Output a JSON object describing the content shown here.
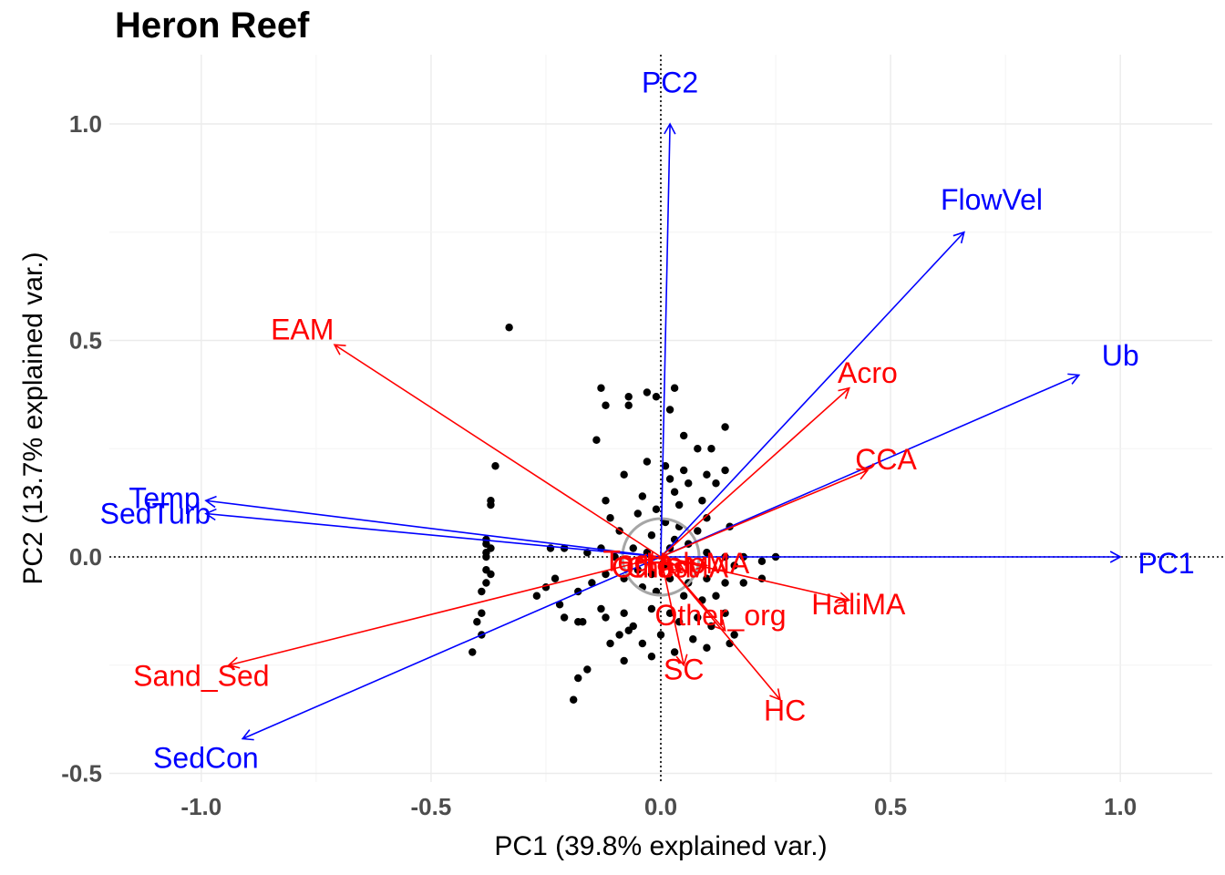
{
  "title": "Heron Reef",
  "chart_data": {
    "type": "scatter",
    "subtype": "biplot",
    "title": "Heron Reef",
    "xlabel": "PC1 (39.8% explained var.)",
    "ylabel": "PC2 (13.7% explained var.)",
    "xlim": [
      -1.2,
      1.2
    ],
    "ylim": [
      -0.52,
      1.16
    ],
    "xticks": [
      -1.0,
      -0.5,
      0.0,
      0.5,
      1.0
    ],
    "xtick_labels": [
      "-1.0",
      "-0.5",
      "0.0",
      "0.5",
      "1.0"
    ],
    "yticks": [
      -0.5,
      0.0,
      0.5,
      1.0
    ],
    "ytick_labels": [
      "-0.5",
      "0.0",
      "0.5",
      "1.0"
    ],
    "grid": true,
    "colors": {
      "blue_vectors": "#0000ff",
      "red_vectors": "#ff0000",
      "points": "#000000",
      "circle": "#a6a6a6"
    },
    "blue_vectors": [
      {
        "name": "PC2",
        "x": 0.02,
        "y": 1.0,
        "lx": 0.02,
        "ly": 1.09
      },
      {
        "name": "FlowVel",
        "x": 0.66,
        "y": 0.75,
        "lx": 0.72,
        "ly": 0.82
      },
      {
        "name": "Ub",
        "x": 0.91,
        "y": 0.42,
        "lx": 1.0,
        "ly": 0.46
      },
      {
        "name": "PC1",
        "x": 1.0,
        "y": 0.0,
        "lx": 1.1,
        "ly": -0.02
      },
      {
        "name": "Temp",
        "x": -0.99,
        "y": 0.13,
        "lx": -1.08,
        "ly": 0.13
      },
      {
        "name": "SedTurb",
        "x": -0.99,
        "y": 0.1,
        "lx": -1.1,
        "ly": 0.095
      },
      {
        "name": "SedCon",
        "x": -0.91,
        "y": -0.42,
        "lx": -0.99,
        "ly": -0.47
      }
    ],
    "red_vectors": [
      {
        "name": "EAM",
        "x": -0.71,
        "y": 0.49,
        "lx": -0.78,
        "ly": 0.52
      },
      {
        "name": "Acro",
        "x": 0.41,
        "y": 0.39,
        "lx": 0.45,
        "ly": 0.42
      },
      {
        "name": "CCA",
        "x": 0.45,
        "y": 0.2,
        "lx": 0.49,
        "ly": 0.22
      },
      {
        "name": "HaliMA",
        "x": 0.41,
        "y": -0.1,
        "lx": 0.43,
        "ly": -0.115
      },
      {
        "name": "Sand_Sed",
        "x": -0.94,
        "y": -0.25,
        "lx": -1.0,
        "ly": -0.28
      },
      {
        "name": "HC",
        "x": 0.26,
        "y": -0.33,
        "lx": 0.27,
        "ly": -0.36
      },
      {
        "name": "SC",
        "x": 0.05,
        "y": -0.25,
        "lx": 0.05,
        "ly": -0.265
      },
      {
        "name": "Other_org",
        "x": 0.14,
        "y": -0.17,
        "lx": 0.13,
        "ly": -0.14
      },
      {
        "name": "HaloMA",
        "x": 0.1,
        "y": -0.02,
        "lx": 0.08,
        "ly": -0.02
      },
      {
        "name": "OtherMA",
        "x": 0.05,
        "y": -0.03,
        "lx": 0.02,
        "ly": -0.03
      },
      {
        "name": "Tecta",
        "x": -0.05,
        "y": -0.01,
        "lx": -0.05,
        "ly": -0.015
      },
      {
        "name": "Crust",
        "x": 0.02,
        "y": -0.02,
        "lx": 0.0,
        "ly": -0.03
      }
    ],
    "points": [
      [
        -0.33,
        0.53
      ],
      [
        -0.13,
        0.39
      ],
      [
        -0.07,
        0.37
      ],
      [
        -0.03,
        0.38
      ],
      [
        -0.01,
        0.37
      ],
      [
        0.03,
        0.39
      ],
      [
        0.02,
        0.34
      ],
      [
        -0.07,
        0.35
      ],
      [
        -0.12,
        0.35
      ],
      [
        0.14,
        0.3
      ],
      [
        -0.14,
        0.27
      ],
      [
        0.05,
        0.28
      ],
      [
        -0.03,
        0.22
      ],
      [
        0.08,
        0.25
      ],
      [
        0.11,
        0.25
      ],
      [
        0.05,
        0.2
      ],
      [
        0.1,
        0.19
      ],
      [
        0.14,
        0.2
      ],
      [
        0.01,
        0.21
      ],
      [
        0.02,
        0.18
      ],
      [
        -0.08,
        0.19
      ],
      [
        -0.04,
        0.14
      ],
      [
        0.03,
        0.15
      ],
      [
        0.06,
        0.17
      ],
      [
        0.12,
        0.17
      ],
      [
        0.09,
        0.13
      ],
      [
        -0.01,
        0.11
      ],
      [
        0.04,
        0.12
      ],
      [
        0.1,
        0.09
      ],
      [
        0.15,
        0.07
      ],
      [
        -0.36,
        0.21
      ],
      [
        -0.37,
        0.13
      ],
      [
        -0.37,
        0.12
      ],
      [
        -0.12,
        0.13
      ],
      [
        -0.11,
        0.09
      ],
      [
        -0.09,
        0.06
      ],
      [
        -0.05,
        0.1
      ],
      [
        0.01,
        0.08
      ],
      [
        0.04,
        0.07
      ],
      [
        0.08,
        0.06
      ],
      [
        -0.38,
        0.04
      ],
      [
        -0.38,
        0.03
      ],
      [
        -0.37,
        0.02
      ],
      [
        -0.38,
        0.01
      ],
      [
        -0.38,
        0.0
      ],
      [
        -0.24,
        0.02
      ],
      [
        -0.21,
        0.02
      ],
      [
        -0.16,
        0.01
      ],
      [
        -0.13,
        0.02
      ],
      [
        -0.1,
        0.0
      ],
      [
        -0.06,
        0.02
      ],
      [
        -0.03,
        0.01
      ],
      [
        0.02,
        0.02
      ],
      [
        0.06,
        0.03
      ],
      [
        0.1,
        0.01
      ],
      [
        0.14,
        0.0
      ],
      [
        0.18,
        0.0
      ],
      [
        0.25,
        0.0
      ],
      [
        0.22,
        -0.01
      ],
      [
        0.16,
        -0.02
      ],
      [
        -0.38,
        -0.03
      ],
      [
        -0.37,
        -0.04
      ],
      [
        -0.38,
        -0.06
      ],
      [
        -0.39,
        -0.08
      ],
      [
        -0.23,
        -0.05
      ],
      [
        -0.25,
        -0.07
      ],
      [
        -0.27,
        -0.09
      ],
      [
        -0.22,
        -0.11
      ],
      [
        -0.18,
        -0.08
      ],
      [
        -0.15,
        -0.06
      ],
      [
        -0.12,
        -0.04
      ],
      [
        -0.08,
        -0.05
      ],
      [
        -0.05,
        -0.03
      ],
      [
        -0.02,
        -0.04
      ],
      [
        0.02,
        -0.05
      ],
      [
        0.06,
        -0.06
      ],
      [
        0.1,
        -0.05
      ],
      [
        0.14,
        -0.06
      ],
      [
        0.18,
        -0.06
      ],
      [
        0.22,
        -0.05
      ],
      [
        -0.39,
        -0.13
      ],
      [
        -0.4,
        -0.15
      ],
      [
        -0.39,
        -0.18
      ],
      [
        -0.41,
        -0.22
      ],
      [
        -0.21,
        -0.14
      ],
      [
        -0.18,
        -0.15
      ],
      [
        -0.17,
        -0.15
      ],
      [
        -0.13,
        -0.12
      ],
      [
        -0.12,
        -0.14
      ],
      [
        -0.08,
        -0.13
      ],
      [
        -0.06,
        -0.16
      ],
      [
        -0.02,
        -0.12
      ],
      [
        0.02,
        -0.13
      ],
      [
        0.04,
        -0.15
      ],
      [
        0.08,
        -0.14
      ],
      [
        0.11,
        -0.16
      ],
      [
        0.14,
        -0.13
      ],
      [
        0.16,
        -0.18
      ],
      [
        0.07,
        -0.19
      ],
      [
        0.0,
        -0.18
      ],
      [
        -0.11,
        -0.2
      ],
      [
        -0.08,
        -0.24
      ],
      [
        -0.04,
        -0.2
      ],
      [
        -0.02,
        -0.23
      ],
      [
        0.03,
        -0.22
      ],
      [
        0.1,
        -0.21
      ],
      [
        0.15,
        -0.2
      ],
      [
        -0.16,
        -0.26
      ],
      [
        -0.18,
        -0.28
      ],
      [
        -0.19,
        -0.33
      ],
      [
        -0.09,
        -0.18
      ],
      [
        -0.07,
        -0.17
      ],
      [
        0.05,
        -0.09
      ],
      [
        0.09,
        -0.1
      ],
      [
        0.12,
        -0.09
      ],
      [
        -0.01,
        -0.08
      ],
      [
        -0.04,
        -0.07
      ],
      [
        0.01,
        -0.02
      ],
      [
        -0.02,
        0.05
      ],
      [
        0.03,
        0.04
      ]
    ]
  }
}
